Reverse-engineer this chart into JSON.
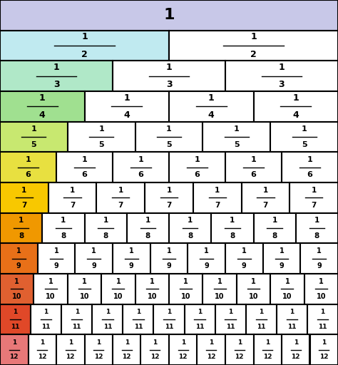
{
  "rows": [
    {
      "n": 1,
      "color": "#c8c8e8"
    },
    {
      "n": 2,
      "color": "#c0eaf0"
    },
    {
      "n": 3,
      "color": "#b0e8c8"
    },
    {
      "n": 4,
      "color": "#a0e090"
    },
    {
      "n": 5,
      "color": "#c8e870"
    },
    {
      "n": 6,
      "color": "#e8e040"
    },
    {
      "n": 7,
      "color": "#f8c800"
    },
    {
      "n": 8,
      "color": "#f09800"
    },
    {
      "n": 9,
      "color": "#e87018"
    },
    {
      "n": 10,
      "color": "#e06030"
    },
    {
      "n": 11,
      "color": "#e04828"
    },
    {
      "n": 12,
      "color": "#e87878"
    }
  ],
  "bg_color": "#ffffff",
  "border_color": "#000000",
  "fig_width": 4.74,
  "fig_height": 5.12,
  "dpi": 100
}
